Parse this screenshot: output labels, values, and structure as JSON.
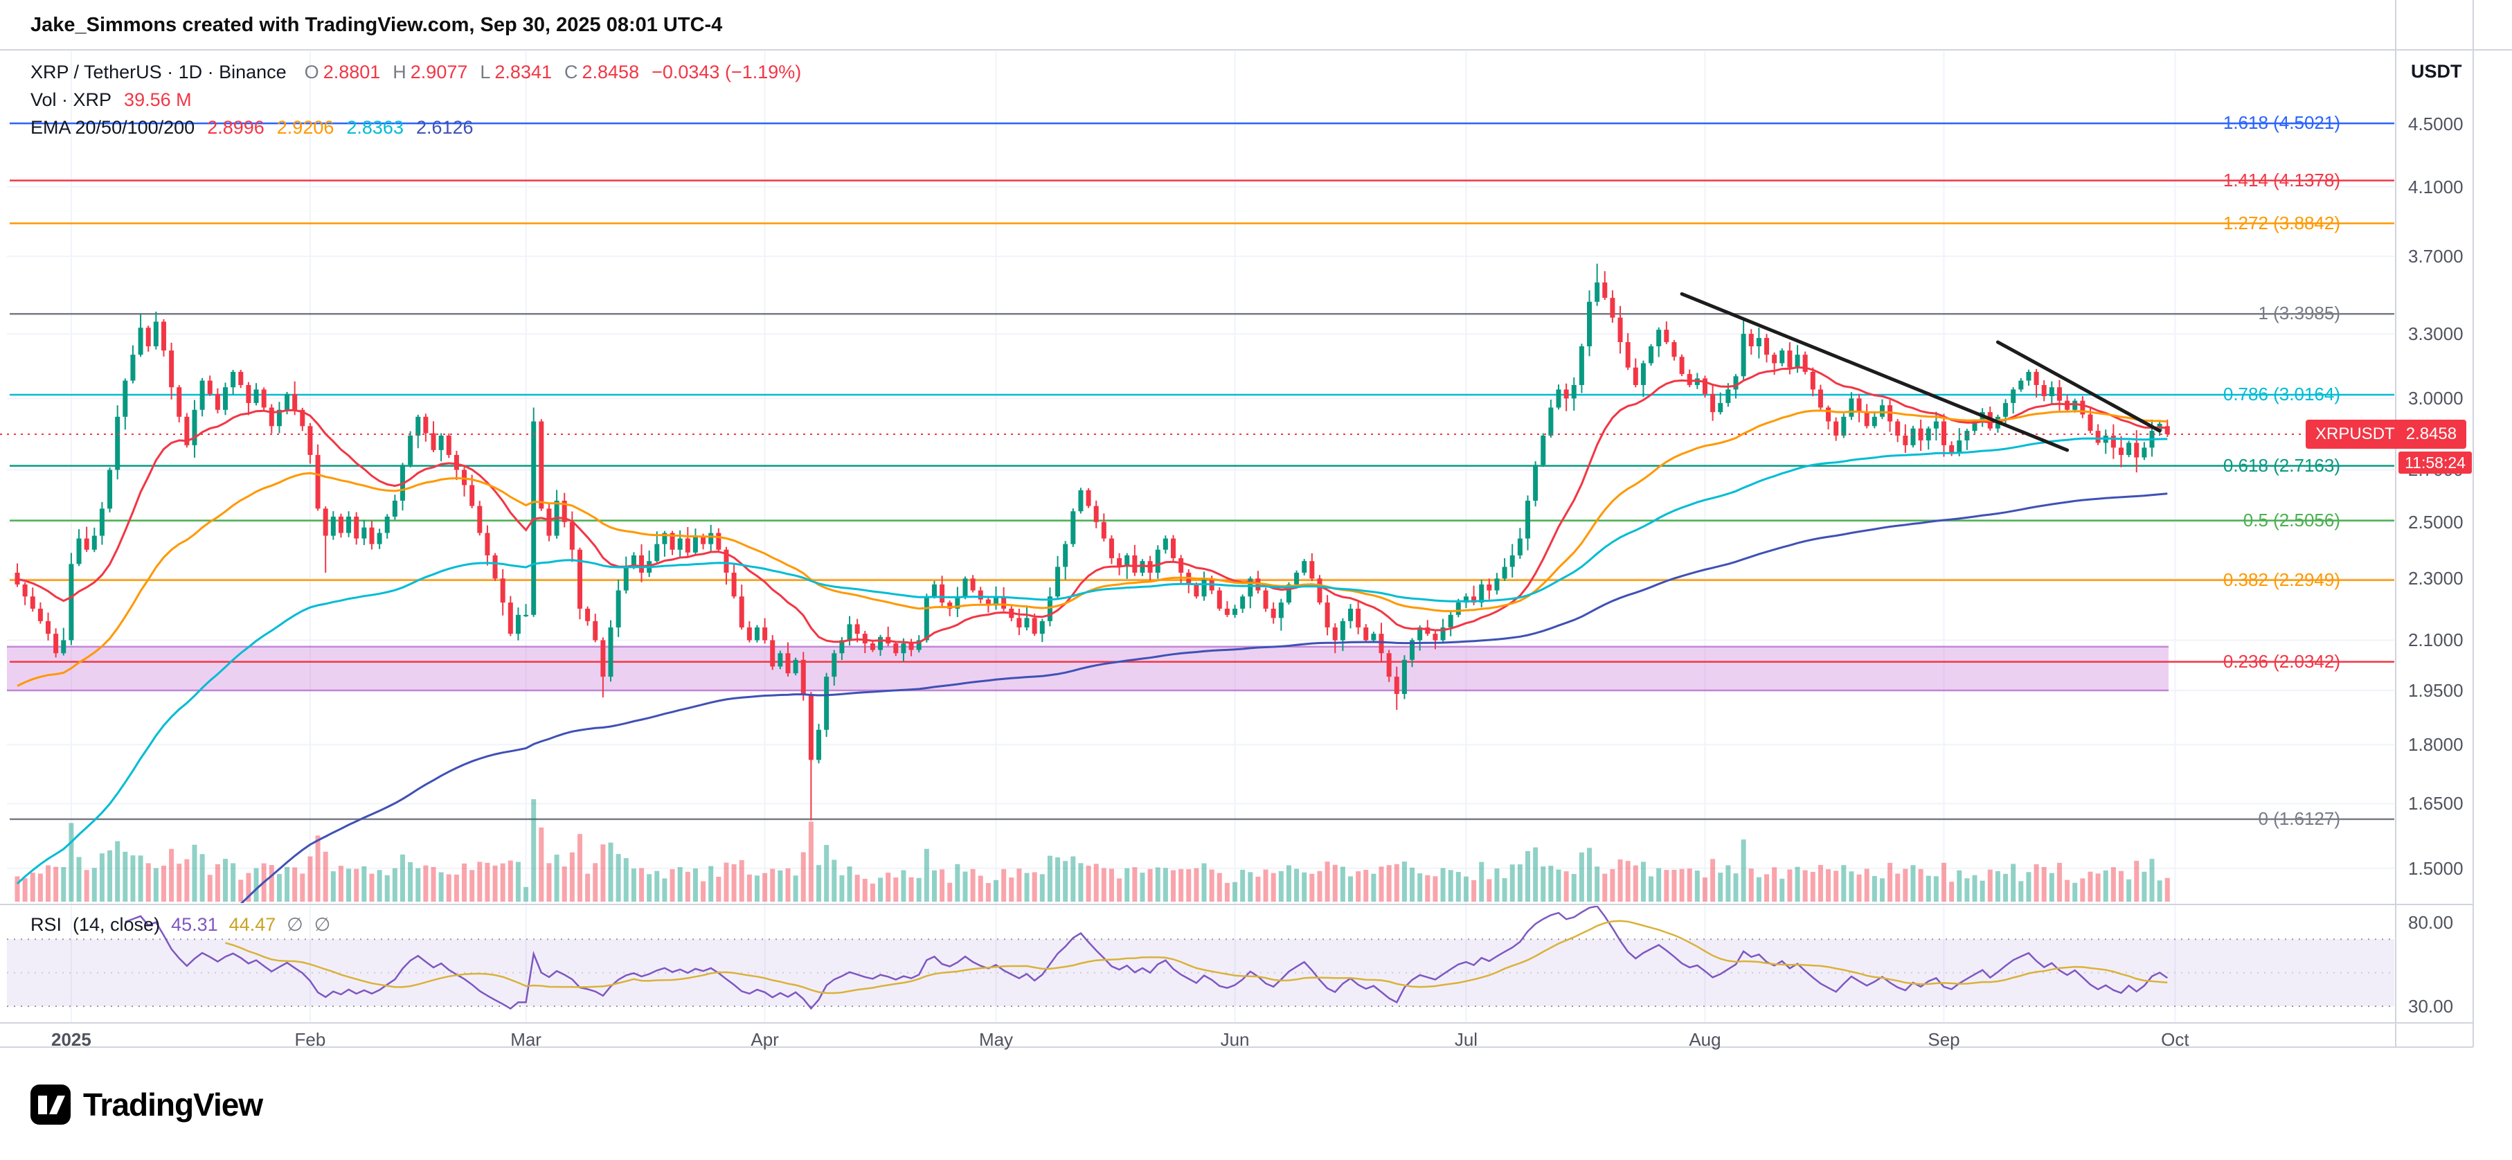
{
  "attribution": "Jake_Simmons created with TradingView.com, Sep 30, 2025 08:01 UTC-4",
  "colors": {
    "up": "#089981",
    "down": "#f23645",
    "accent": "#f23645",
    "volume_up": "rgba(8,153,129,0.45)",
    "volume_down": "rgba(242,54,69,0.45)",
    "grid": "#f0f3fa",
    "border": "#d1d4dc",
    "text": "#131722",
    "muted": "#787b86",
    "rsi_line": "#7e57c2",
    "rsi_ma": "#d9b23a",
    "trendline": "#1c1c1c"
  },
  "legend": {
    "title": "XRP / TetherUS · 1D · Binance",
    "o_label": "O",
    "o_value": "2.8801",
    "h_label": "H",
    "h_value": "2.9077",
    "l_label": "L",
    "l_value": "2.8341",
    "c_label": "C",
    "c_value": "2.8458",
    "change": "−0.0343 (−1.19%)",
    "vol_label": "Vol · XRP",
    "vol_value": "39.56 M",
    "ema_label": "EMA 20/50/100/200",
    "ema_values": [
      {
        "text": "2.8996",
        "color": "#f23645"
      },
      {
        "text": "2.9206",
        "color": "#ff9800"
      },
      {
        "text": "2.8363",
        "color": "#00bcd4"
      },
      {
        "text": "2.6126",
        "color": "#3f51b5"
      }
    ]
  },
  "price_axis": {
    "currency": "USDT",
    "ticks": [
      {
        "v": 4.5,
        "label": "4.5000"
      },
      {
        "v": 4.1,
        "label": "4.1000"
      },
      {
        "v": 3.7,
        "label": "3.7000"
      },
      {
        "v": 3.3,
        "label": "3.3000"
      },
      {
        "v": 3.0,
        "label": "3.0000"
      },
      {
        "v": 2.7,
        "label": "2.7000"
      },
      {
        "v": 2.5,
        "label": "2.5000"
      },
      {
        "v": 2.3,
        "label": "2.3000"
      },
      {
        "v": 2.1,
        "label": "2.1000"
      },
      {
        "v": 1.95,
        "label": "1.9500"
      },
      {
        "v": 1.8,
        "label": "1.8000"
      },
      {
        "v": 1.65,
        "label": "1.6500"
      },
      {
        "v": 1.5,
        "label": "1.5000"
      }
    ]
  },
  "price_label": {
    "symbol": "XRPUSDT",
    "price": "2.8458",
    "countdown": "11:58:24"
  },
  "fib_levels": [
    {
      "label": "1.618 (4.5021)",
      "price": 4.5021,
      "color": "#2962ff"
    },
    {
      "label": "1.414 (4.1378)",
      "price": 4.1378,
      "color": "#f23645"
    },
    {
      "label": "1.272 (3.8842)",
      "price": 3.8842,
      "color": "#ff9800"
    },
    {
      "label": "1 (3.3985)",
      "price": 3.3985,
      "color": "#787b86"
    },
    {
      "label": "0.786 (3.0164)",
      "price": 3.0164,
      "color": "#00bcd4"
    },
    {
      "label": "0.618 (2.7163)",
      "price": 2.7163,
      "color": "#089981"
    },
    {
      "label": "0.5 (2.5056)",
      "price": 2.5056,
      "color": "#4caf50"
    },
    {
      "label": "0.382 (2.2949)",
      "price": 2.2949,
      "color": "#ff9800"
    },
    {
      "label": "0.236 (2.0342)",
      "price": 2.0342,
      "color": "#f23645"
    },
    {
      "label": "0 (1.6127)",
      "price": 1.6127,
      "color": "#787b86"
    }
  ],
  "zone": {
    "price_top": 2.08,
    "price_bottom": 1.95,
    "fill": "rgba(206,132,222,0.38)",
    "border": "rgba(163,73,190,0.6)"
  },
  "trendlines": [
    {
      "day1": 216,
      "price1": 3.5,
      "day2": 266,
      "price2": 2.78
    },
    {
      "day1": 257,
      "price1": 3.26,
      "day2": 278,
      "price2": 2.86
    }
  ],
  "time_axis": {
    "labels": [
      [
        "2025",
        7
      ],
      [
        "Feb",
        38
      ],
      [
        "Mar",
        66
      ],
      [
        "Apr",
        97
      ],
      [
        "May",
        127
      ],
      [
        "Jun",
        158
      ],
      [
        "Jul",
        188
      ],
      [
        "Aug",
        219
      ],
      [
        "Sep",
        250
      ],
      [
        "Oct",
        280
      ]
    ]
  },
  "rsi": {
    "title": "RSI",
    "params": "(14, close)",
    "value": "45.31",
    "ma_value": "44.47",
    "empty1": "∅",
    "empty2": "∅",
    "upper": "80.00",
    "lower": "30.00"
  },
  "branding": {
    "name": "TradingView"
  },
  "chart_data": {
    "type": "candlestick",
    "symbol": "XRP/USDT",
    "exchange": "Binance",
    "interval": "1D",
    "start_date": "2024-12-25",
    "end_date": "2025-09-30",
    "closes": [
      2.28,
      2.24,
      2.2,
      2.16,
      2.12,
      2.06,
      2.1,
      2.35,
      2.44,
      2.4,
      2.45,
      2.55,
      2.7,
      2.92,
      3.08,
      3.2,
      3.33,
      3.24,
      3.36,
      3.22,
      3.05,
      2.92,
      2.8,
      2.95,
      3.08,
      3.02,
      2.95,
      3.05,
      3.12,
      3.06,
      2.98,
      3.04,
      2.96,
      2.88,
      2.95,
      3.02,
      2.95,
      2.88,
      2.76,
      2.55,
      2.45,
      2.52,
      2.46,
      2.52,
      2.44,
      2.48,
      2.42,
      2.46,
      2.52,
      2.58,
      2.72,
      2.84,
      2.92,
      2.85,
      2.78,
      2.84,
      2.76,
      2.7,
      2.64,
      2.56,
      2.46,
      2.38,
      2.3,
      2.22,
      2.12,
      2.18,
      2.18,
      2.9,
      2.55,
      2.45,
      2.58,
      2.5,
      2.4,
      2.2,
      2.16,
      2.1,
      1.99,
      2.14,
      2.26,
      2.34,
      2.38,
      2.32,
      2.36,
      2.42,
      2.46,
      2.4,
      2.44,
      2.39,
      2.45,
      2.42,
      2.46,
      2.4,
      2.32,
      2.24,
      2.14,
      2.1,
      2.14,
      2.1,
      2.02,
      2.06,
      2.0,
      2.04,
      1.94,
      1.76,
      1.84,
      1.99,
      2.06,
      2.1,
      2.15,
      2.12,
      2.09,
      2.07,
      2.11,
      2.09,
      2.06,
      2.09,
      2.07,
      2.1,
      2.24,
      2.28,
      2.22,
      2.2,
      2.24,
      2.3,
      2.26,
      2.23,
      2.21,
      2.24,
      2.2,
      2.17,
      2.14,
      2.17,
      2.12,
      2.16,
      2.24,
      2.34,
      2.42,
      2.54,
      2.62,
      2.56,
      2.5,
      2.44,
      2.37,
      2.34,
      2.38,
      2.32,
      2.36,
      2.32,
      2.4,
      2.44,
      2.37,
      2.32,
      2.28,
      2.24,
      2.3,
      2.26,
      2.2,
      2.18,
      2.2,
      2.24,
      2.3,
      2.26,
      2.2,
      2.17,
      2.22,
      2.28,
      2.32,
      2.36,
      2.3,
      2.22,
      2.14,
      2.1,
      2.16,
      2.2,
      2.14,
      2.1,
      2.12,
      2.06,
      1.99,
      1.94,
      2.04,
      2.1,
      2.14,
      2.12,
      2.1,
      2.14,
      2.18,
      2.22,
      2.24,
      2.22,
      2.28,
      2.26,
      2.3,
      2.34,
      2.38,
      2.44,
      2.58,
      2.72,
      2.84,
      2.96,
      3.04,
      3.0,
      3.06,
      3.24,
      3.46,
      3.56,
      3.48,
      3.38,
      3.26,
      3.14,
      3.06,
      3.16,
      3.24,
      3.32,
      3.26,
      3.19,
      3.11,
      3.06,
      3.09,
      3.02,
      2.94,
      2.98,
      3.04,
      3.1,
      3.3,
      3.24,
      3.28,
      3.2,
      3.16,
      3.22,
      3.14,
      3.2,
      3.12,
      3.04,
      2.96,
      2.9,
      2.84,
      2.92,
      3.0,
      2.94,
      2.88,
      2.92,
      2.97,
      2.9,
      2.84,
      2.8,
      2.87,
      2.82,
      2.87,
      2.9,
      2.8,
      2.77,
      2.82,
      2.86,
      2.9,
      2.94,
      2.87,
      2.92,
      2.98,
      3.04,
      3.08,
      3.12,
      3.06,
      3.01,
      3.05,
      2.99,
      2.95,
      2.99,
      2.93,
      2.86,
      2.81,
      2.84,
      2.79,
      2.76,
      2.81,
      2.75,
      2.79,
      2.86,
      2.89,
      2.8458
    ],
    "open_overrides": [
      [
        279,
        2.8801
      ]
    ],
    "wick_overrides": [
      [
        16,
        3.4,
        null
      ],
      [
        18,
        3.41,
        null
      ],
      [
        40,
        null,
        2.32
      ],
      [
        67,
        2.96,
        null
      ],
      [
        76,
        null,
        1.93
      ],
      [
        103,
        null,
        1.61
      ],
      [
        179,
        null,
        1.895
      ],
      [
        205,
        3.66,
        null
      ],
      [
        206,
        3.62,
        null
      ],
      [
        224,
        3.38,
        null
      ],
      [
        275,
        null,
        2.69
      ],
      [
        279,
        2.9077,
        2.8341
      ]
    ],
    "ema_periods": [
      20,
      50,
      100,
      200
    ],
    "ema_seeds": [
      2.3,
      1.95,
      1.45,
      0.95
    ],
    "rsi_period": 14,
    "last": {
      "open": 2.8801,
      "high": 2.9077,
      "low": 2.8341,
      "close": 2.8458,
      "change": -0.0343,
      "change_pct": -1.19,
      "volume_m": 39.56
    }
  }
}
